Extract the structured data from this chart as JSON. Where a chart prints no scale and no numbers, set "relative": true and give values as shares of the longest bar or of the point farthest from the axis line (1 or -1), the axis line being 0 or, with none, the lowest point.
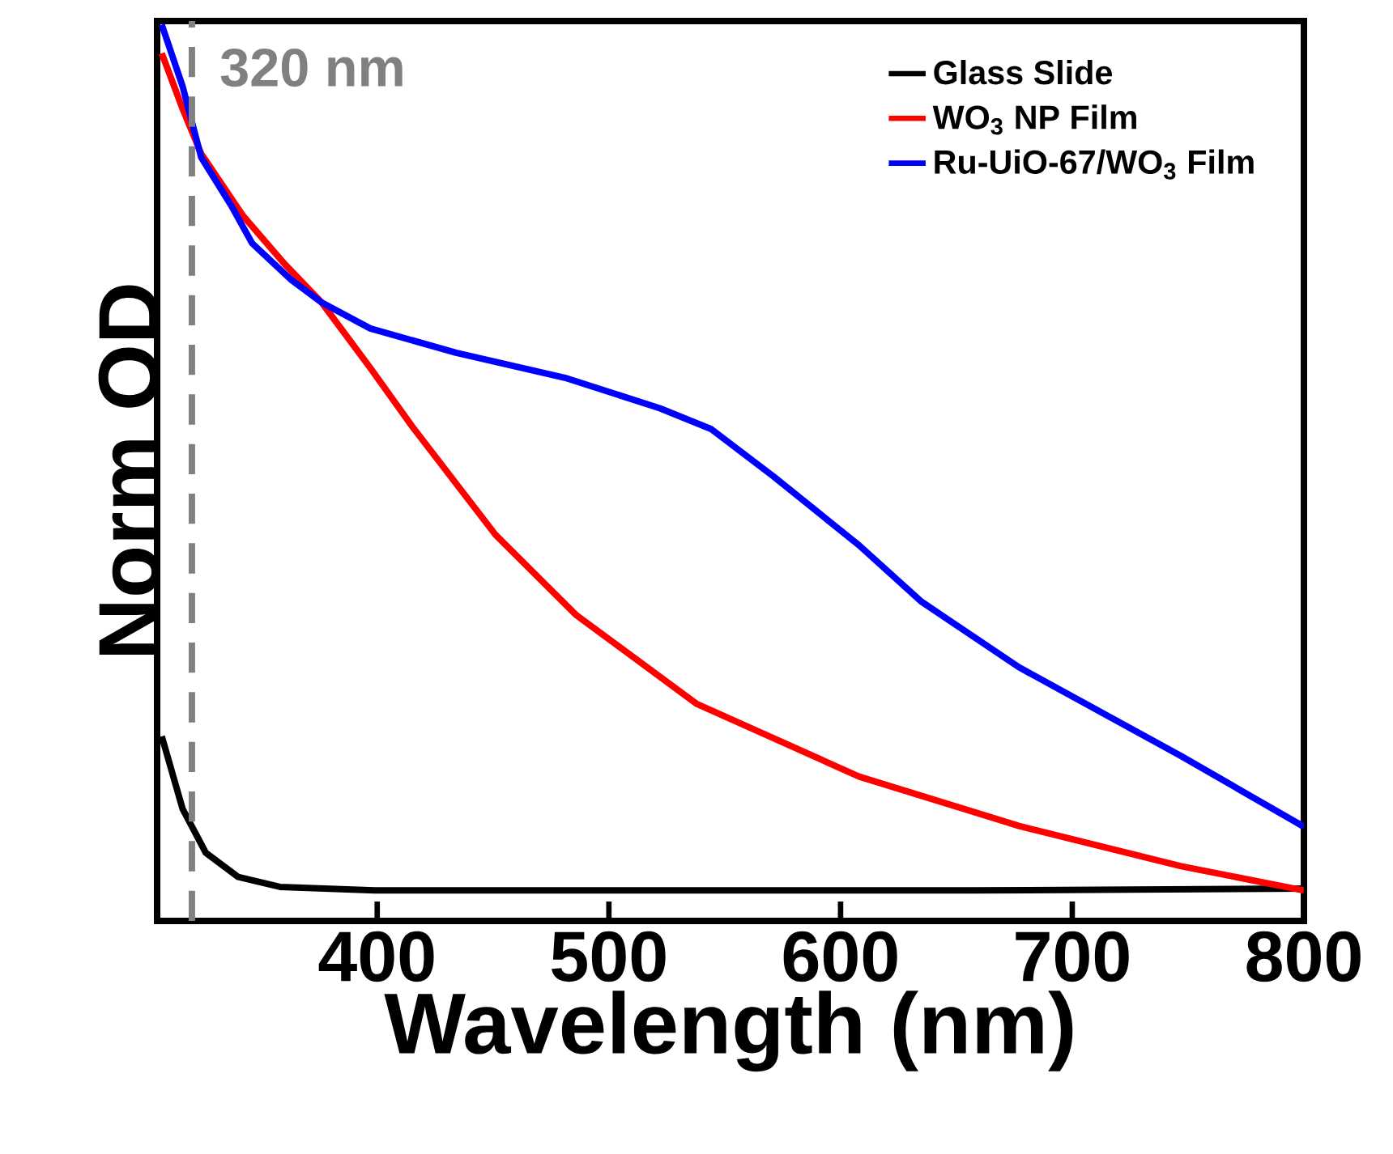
{
  "chart_data": {
    "type": "line",
    "relative": true,
    "xlabel": "Wavelength (nm)",
    "ylabel": "Norm OD",
    "xlim": [
      305,
      800
    ],
    "xticks": [
      400,
      500,
      600,
      700,
      800
    ],
    "legend": "top right",
    "line_style": "solid",
    "ref_lines": [
      {
        "axis": "x",
        "value": 320,
        "label": "320 nm",
        "color": "#808080",
        "line_style": "dashed"
      }
    ],
    "series": [
      {
        "name": "Glass Slide",
        "color": "#000000",
        "x": [
          307,
          316,
          326,
          340,
          358,
          399,
          517,
          656,
          800
        ],
        "values": [
          0.206,
          0.125,
          0.076,
          0.049,
          0.038,
          0.034,
          0.034,
          0.034,
          0.036
        ]
      },
      {
        "name": "WO$_{3}$ NP Film",
        "color": "#ff0000",
        "x": [
          307,
          316,
          324,
          342,
          360,
          376,
          397,
          415,
          451,
          486,
          538,
          608,
          677,
          747,
          800
        ],
        "values": [
          0.968,
          0.906,
          0.856,
          0.787,
          0.733,
          0.69,
          0.617,
          0.552,
          0.431,
          0.341,
          0.242,
          0.161,
          0.106,
          0.061,
          0.034
        ]
      },
      {
        "name": "Ru-UiO-67/WO$_{3}$ Film",
        "color": "#0000ff",
        "x": [
          307,
          316,
          324,
          337,
          346,
          363,
          376,
          397,
          434,
          481,
          522,
          544,
          571,
          608,
          635,
          677,
          747,
          800
        ],
        "values": [
          1.0,
          0.931,
          0.852,
          0.798,
          0.756,
          0.715,
          0.69,
          0.661,
          0.634,
          0.606,
          0.572,
          0.549,
          0.496,
          0.419,
          0.356,
          0.283,
          0.184,
          0.105
        ]
      }
    ]
  }
}
